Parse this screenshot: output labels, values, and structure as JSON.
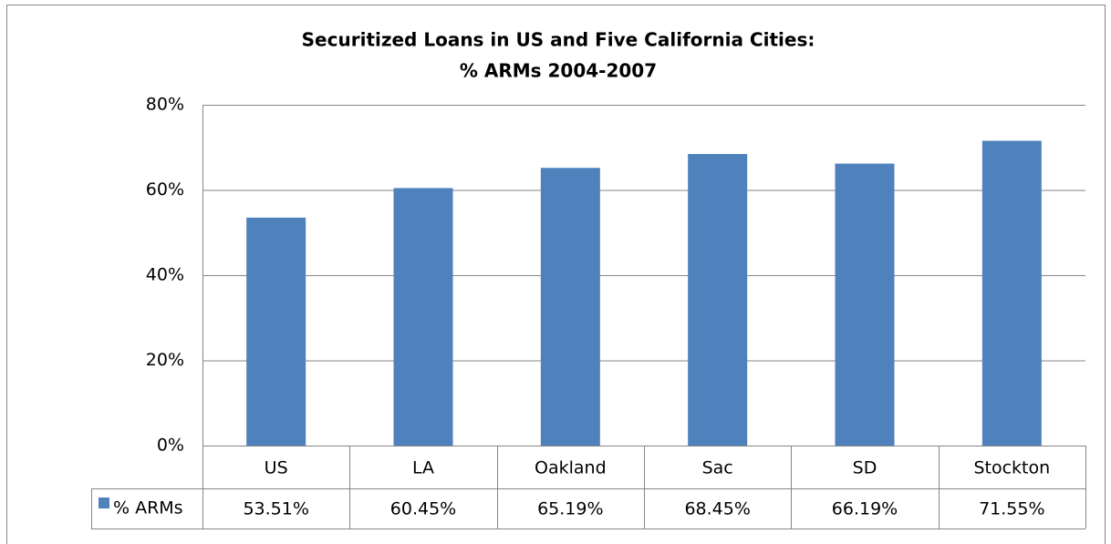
{
  "chart_data": {
    "type": "bar",
    "title": [
      "Securitized Loans in US and Five California Cities:",
      "% ARMs 2004-2007"
    ],
    "categories": [
      "US",
      "LA",
      "Oakland",
      "Sac",
      "SD",
      "Stockton"
    ],
    "series": [
      {
        "name": "% ARMs",
        "color": "#4f81bd",
        "values": [
          53.51,
          60.45,
          65.19,
          68.45,
          66.19,
          71.55
        ],
        "value_labels": [
          "53.51%",
          "60.45%",
          "65.19%",
          "68.45%",
          "66.19%",
          "71.55%"
        ]
      }
    ],
    "ylim": [
      0,
      80
    ],
    "yticks": [
      {
        "value": 0,
        "label": "0%"
      },
      {
        "value": 20,
        "label": "20%"
      },
      {
        "value": 40,
        "label": "40%"
      },
      {
        "value": 60,
        "label": "60%"
      },
      {
        "value": 80,
        "label": "80%"
      }
    ],
    "grid": true
  }
}
